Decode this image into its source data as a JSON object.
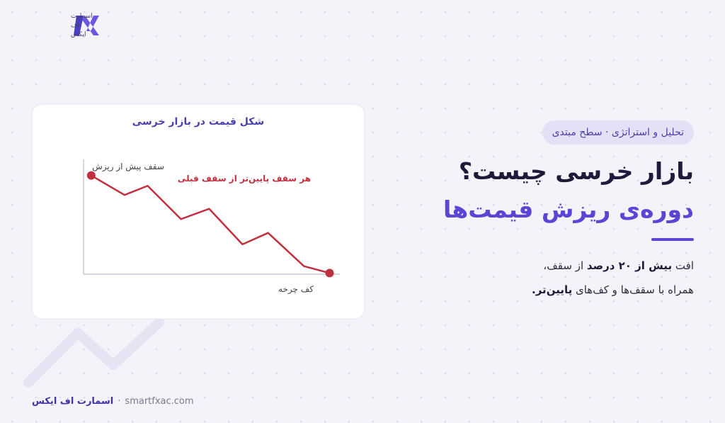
{
  "logo": {
    "lines": [
      "اسمارت",
      "اف",
      "ایکس"
    ]
  },
  "badge": "تحلیل و استراتژی · سطح مبتدی",
  "headline": {
    "line1": "بازار خرسی چیست؟",
    "line2": "دوره‌ی ریزش قیمت‌ها"
  },
  "body": {
    "line1": [
      "افت",
      "بیش از ۲۰ درصد",
      "از سقف،"
    ],
    "line2": [
      "همراه با سقف‌ها و کف‌های",
      "پایین‌تر."
    ]
  },
  "footer": {
    "brand": "اسمارت اف ایکس",
    "separator": "·",
    "url": "smartfxac.com"
  },
  "chart_data": {
    "type": "line",
    "title": "شکل قیمت در بازار خرسی",
    "x": [
      3,
      16,
      25,
      38,
      49,
      62,
      72,
      86,
      96
    ],
    "values": [
      86,
      69,
      77,
      48,
      57,
      26,
      36,
      7,
      1
    ],
    "xlim": [
      0,
      100
    ],
    "ylim": [
      0,
      100
    ],
    "color": "#c1303f",
    "annotations": {
      "first": "سقف پیش از ریزش",
      "middle": "هر سقف پایین‌تر از سقف قبلی",
      "last": "کف چرخه"
    }
  }
}
